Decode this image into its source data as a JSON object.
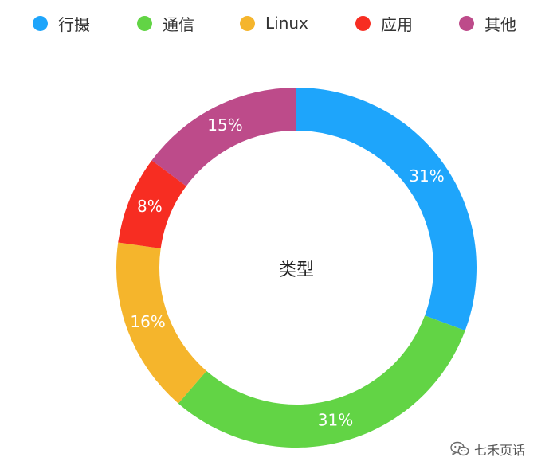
{
  "chart_data": {
    "type": "pie",
    "donut": true,
    "center_label": "类型",
    "categories": [
      "行摄",
      "通信",
      "Linux",
      "应用",
      "其他"
    ],
    "values": [
      31,
      31,
      16,
      8,
      15
    ],
    "value_labels": [
      "31%",
      "31%",
      "16%",
      "8%",
      "15%"
    ],
    "colors": [
      "#1ea5fb",
      "#62d445",
      "#f5b52c",
      "#f72d22",
      "#bd4b8a"
    ],
    "legend_position": "top",
    "start_angle": "12 o'clock",
    "direction": "clockwise"
  },
  "watermark": {
    "icon": "wechat-icon",
    "text": "七禾页话"
  }
}
